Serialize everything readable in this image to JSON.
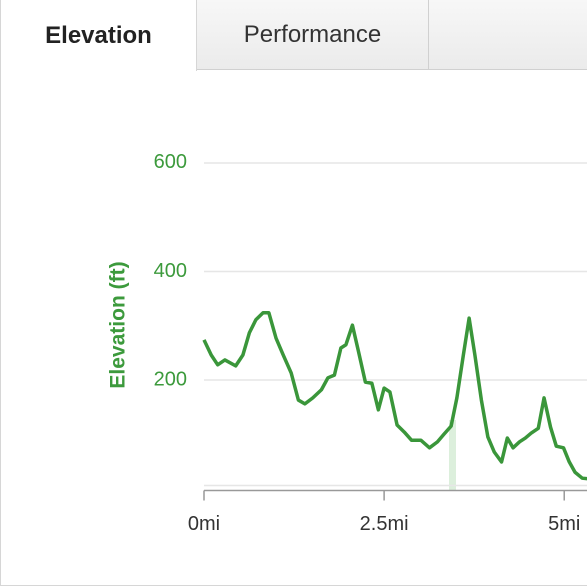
{
  "tabs": [
    {
      "label": "Elevation"
    },
    {
      "label": "Performance"
    }
  ],
  "chart_data": {
    "type": "line",
    "ylabel": "Elevation (ft)",
    "color": "#3a963a",
    "x": [
      0,
      0.1,
      0.19,
      0.29,
      0.44,
      0.54,
      0.63,
      0.72,
      0.82,
      0.9,
      1.0,
      1.1,
      1.21,
      1.31,
      1.4,
      1.51,
      1.63,
      1.72,
      1.81,
      1.9,
      1.97,
      2.06,
      2.14,
      2.24,
      2.33,
      2.42,
      2.5,
      2.58,
      2.68,
      2.78,
      2.88,
      3.01,
      3.13,
      3.24,
      3.33,
      3.43,
      3.51,
      3.6,
      3.68,
      3.76,
      3.85,
      3.94,
      4.03,
      4.13,
      4.21,
      4.29,
      4.38,
      4.46,
      4.54,
      4.64,
      4.72,
      4.81,
      4.89,
      4.99,
      5.07,
      5.15,
      5.25,
      5.33
    ],
    "values": [
      274,
      246,
      228,
      237,
      226,
      246,
      287,
      311,
      324,
      324,
      277,
      246,
      213,
      163,
      156,
      167,
      182,
      204,
      209,
      259,
      265,
      301,
      255,
      196,
      194,
      145,
      185,
      178,
      117,
      104,
      89,
      89,
      75,
      86,
      100,
      115,
      167,
      246,
      314,
      246,
      163,
      95,
      67,
      49,
      93,
      75,
      86,
      93,
      102,
      111,
      167,
      113,
      78,
      75,
      49,
      30,
      19,
      18
    ],
    "xlim": [
      0,
      5.33
    ],
    "ylim": [
      0,
      700
    ],
    "xticks": [
      {
        "value": 0,
        "label": "0mi"
      },
      {
        "value": 2.5,
        "label": "2.5mi"
      },
      {
        "value": 5,
        "label": "5mi"
      }
    ],
    "yticks": [
      200,
      400,
      600
    ],
    "grid": true
  }
}
